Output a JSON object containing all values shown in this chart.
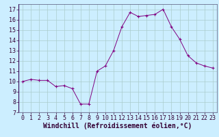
{
  "x": [
    0,
    1,
    2,
    3,
    4,
    5,
    6,
    7,
    8,
    9,
    10,
    11,
    12,
    13,
    14,
    15,
    16,
    17,
    18,
    19,
    20,
    21,
    22,
    23
  ],
  "y": [
    10.0,
    10.2,
    10.1,
    10.1,
    9.5,
    9.6,
    9.3,
    7.8,
    7.8,
    11.0,
    11.5,
    13.0,
    15.3,
    16.7,
    16.3,
    16.4,
    16.5,
    17.0,
    15.3,
    14.1,
    12.5,
    11.8,
    11.5,
    11.3
  ],
  "xlim": [
    -0.5,
    23.5
  ],
  "ylim": [
    7,
    17.5
  ],
  "yticks": [
    7,
    8,
    9,
    10,
    11,
    12,
    13,
    14,
    15,
    16,
    17
  ],
  "xticks": [
    0,
    1,
    2,
    3,
    4,
    5,
    6,
    7,
    8,
    9,
    10,
    11,
    12,
    13,
    14,
    15,
    16,
    17,
    18,
    19,
    20,
    21,
    22,
    23
  ],
  "xlabel": "Windchill (Refroidissement éolien,°C)",
  "line_color": "#800080",
  "marker_color": "#800080",
  "bg_color": "#cceeff",
  "grid_color": "#aacccc",
  "xlabel_fontsize": 7,
  "tick_fontsize": 6
}
